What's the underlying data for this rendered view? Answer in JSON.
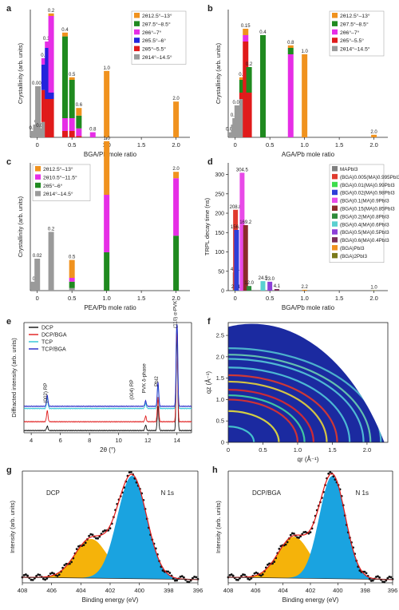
{
  "chart_data": [
    {
      "panel": "a",
      "type": "bar",
      "stacked": true,
      "xlabel": "BGA/Pb mole ratio",
      "ylabel": "Crystallinity (arb. units)",
      "xticks": [
        "0",
        "0.5",
        "1.0",
        "1.5",
        "2.0"
      ],
      "xlim": [
        -0.1,
        2.2
      ],
      "ylim": [
        0,
        1
      ],
      "legend": [
        "2θ12.5°–13°",
        "2θ7.5°–8.5°",
        "2θ6°–7°",
        "2θ5.5°–6°",
        "2θ5°–5.5°",
        "2θ14°–14.5°"
      ],
      "colors": [
        "#f0921e",
        "#1f8a1f",
        "#e62ee6",
        "#2424dc",
        "#e01b1b",
        "#9a9a9a"
      ],
      "legend_position": "top-right",
      "bars": [
        {
          "x": -0.05,
          "label": "0.02",
          "segments": [
            0,
            0,
            0,
            0,
            0,
            0.05
          ]
        },
        {
          "x": -0.02,
          "label": "0",
          "segments": [
            0,
            0,
            0,
            0,
            0,
            0.1
          ]
        },
        {
          "x": 0.01,
          "label": "0.005",
          "segments": [
            0,
            0,
            0,
            0,
            0,
            0.4
          ]
        },
        {
          "x": 0.05,
          "label": "0.01",
          "segments": [
            0,
            0,
            0,
            0,
            0,
            0.07
          ]
        },
        {
          "x": 0.1,
          "label": "0.1",
          "segments": [
            0,
            0,
            0.05,
            0.2,
            0.25,
            0.12
          ]
        },
        {
          "x": 0.15,
          "label": "0.15",
          "segments": [
            0,
            0,
            0.05,
            0.4,
            0.3,
            0
          ]
        },
        {
          "x": 0.2,
          "label": "0.2",
          "segments": [
            0.02,
            0,
            0.6,
            0.05,
            0.3,
            0
          ]
        },
        {
          "x": 0.4,
          "label": "0.4",
          "segments": [
            0.03,
            0.64,
            0.1,
            0,
            0.05,
            0
          ]
        },
        {
          "x": 0.5,
          "label": "0.5",
          "segments": [
            0.02,
            0.3,
            0.1,
            0,
            0.05,
            0
          ]
        },
        {
          "x": 0.6,
          "label": "0.6",
          "segments": [
            0.06,
            0.1,
            0.06,
            0,
            0.01,
            0
          ]
        },
        {
          "x": 0.8,
          "label": "0.8",
          "segments": [
            0,
            0,
            0.04,
            0,
            0,
            0
          ]
        },
        {
          "x": 1.0,
          "label": "1.0",
          "segments": [
            0.52,
            0,
            0,
            0,
            0,
            0
          ]
        },
        {
          "x": 2.0,
          "label": "2.0",
          "segments": [
            0.28,
            0,
            0,
            0,
            0,
            0
          ]
        }
      ]
    },
    {
      "panel": "b",
      "type": "bar",
      "stacked": true,
      "xlabel": "AGA/Pb mole ratio",
      "ylabel": "Crystallinity (arb. units)",
      "xticks": [
        "0",
        "0.5",
        "1.0",
        "1.5",
        "2.0"
      ],
      "xlim": [
        -0.1,
        2.2
      ],
      "ylim": [
        0,
        1
      ],
      "legend": [
        "2θ12.5°–13°",
        "2θ7.5°–8.5°",
        "2θ6°–7°",
        "2θ5°–5.5°",
        "2θ14°–14.5°"
      ],
      "colors": [
        "#f0921e",
        "#1f8a1f",
        "#e62ee6",
        "#e01b1b",
        "#9a9a9a"
      ],
      "legend_position": "top-right",
      "bars": [
        {
          "x": -0.05,
          "label": "0.005",
          "segments": [
            0,
            0,
            0,
            0,
            0.04
          ]
        },
        {
          "x": -0.02,
          "label": "0",
          "segments": [
            0,
            0,
            0,
            0,
            0.1
          ]
        },
        {
          "x": 0.0,
          "label": "0.01",
          "segments": [
            0,
            0,
            0,
            0,
            0.15
          ]
        },
        {
          "x": 0.03,
          "label": "0.02",
          "segments": [
            0,
            0,
            0,
            0,
            0.25
          ]
        },
        {
          "x": 0.1,
          "label": "0.1",
          "segments": [
            0.02,
            0.1,
            0,
            0.05,
            0.3
          ]
        },
        {
          "x": 0.15,
          "label": "0.15",
          "segments": [
            0.05,
            0,
            0.05,
            0.75,
            0
          ]
        },
        {
          "x": 0.2,
          "label": "0.2",
          "segments": [
            0,
            0.2,
            0,
            0.35,
            0
          ]
        },
        {
          "x": 0.4,
          "label": "0.4",
          "segments": [
            0,
            0.8,
            0,
            0,
            0
          ]
        },
        {
          "x": 0.8,
          "label": "0.8",
          "segments": [
            0.02,
            0.05,
            0.65,
            0,
            0
          ]
        },
        {
          "x": 1.0,
          "label": "1.0",
          "segments": [
            0.65,
            0,
            0,
            0,
            0
          ]
        },
        {
          "x": 2.0,
          "label": "2.0",
          "segments": [
            0.02,
            0,
            0,
            0,
            0
          ]
        }
      ]
    },
    {
      "panel": "c",
      "type": "bar",
      "stacked": true,
      "xlabel": "PEA/Pb mole ratio",
      "ylabel": "Crystallinity (arb. units)",
      "xticks": [
        "0",
        "0.5",
        "1.0",
        "1.5",
        "2.0"
      ],
      "xlim": [
        -0.1,
        2.2
      ],
      "ylim": [
        0,
        1
      ],
      "legend": [
        "2θ12.5°–13°",
        "2θ10.5°–11.5°",
        "2θ5°–6°",
        "2θ14°–14.5°"
      ],
      "colors": [
        "#f0921e",
        "#e62ee6",
        "#1f8a1f",
        "#9a9a9a"
      ],
      "legend_position": "top-left",
      "bars": [
        {
          "x": -0.05,
          "label": "0",
          "segments": [
            0,
            0,
            0,
            0.07
          ]
        },
        {
          "x": 0.0,
          "label": "0.02",
          "segments": [
            0,
            0,
            0,
            0.25
          ]
        },
        {
          "x": 0.2,
          "label": "0.2",
          "segments": [
            0,
            0,
            0,
            0.46
          ]
        },
        {
          "x": 0.5,
          "label": "0.5",
          "segments": [
            0.14,
            0.03,
            0.05,
            0.02
          ]
        },
        {
          "x": 1.0,
          "label": "1.0",
          "segments": [
            0.42,
            0.45,
            0.3,
            0
          ]
        },
        {
          "x": 2.0,
          "label": "2.0",
          "segments": [
            0.05,
            0.45,
            0.43,
            0
          ]
        }
      ]
    },
    {
      "panel": "d",
      "type": "bar",
      "xlabel": "BGA/Pb mole ratio",
      "ylabel": "TRPL decay time (ns)",
      "xticks": [
        "0",
        "0.5",
        "1.0",
        "1.5",
        "2.0"
      ],
      "xlim": [
        -0.1,
        2.2
      ],
      "yticks": [
        0,
        50,
        100,
        150,
        200,
        250,
        300
      ],
      "ylim": [
        0,
        330
      ],
      "legend": [
        "MAPbI3",
        "(BGA)0.005(MA)0.995PbI3",
        "(BGA)0.01(MA)0.99PbI3",
        "(BGA)0.02(MA)0.98PbI3",
        "(BGA)0.1(MA)0.9PbI3",
        "(BGA)0.15(MA)0.85PbI3",
        "(BGA)0.2(MA)0.8PbI3",
        "(BGA)0.4(MA)0.6PbI3",
        "(BGA)0.5(MA)0.5PbI3",
        "(BGA)0.6(MA)0.4PbI3",
        "(BGA)PbI3",
        "(BGA)2PbI3"
      ],
      "colors": [
        "#7f7f7f",
        "#e03a2e",
        "#3cdd4c",
        "#2e3ed8",
        "#e84ae8",
        "#8b2a2a",
        "#2e8b3a",
        "#5ad0d0",
        "#8d3fd8",
        "#7a2c58",
        "#f0921e",
        "#7a7a1a"
      ],
      "legend_position": "top-right",
      "bars": [
        {
          "x": 0.0,
          "value": 47.1,
          "label": "47.1"
        },
        {
          "x": 0.005,
          "value": 208.8,
          "label": "208.8"
        },
        {
          "x": 0.01,
          "value": 2.31,
          "label": "2.31"
        },
        {
          "x": 0.02,
          "value": 156.9,
          "label": "156.9"
        },
        {
          "x": 0.1,
          "value": 304.5,
          "label": "304.5"
        },
        {
          "x": 0.15,
          "value": 169.2,
          "label": "169.2"
        },
        {
          "x": 0.2,
          "value": 12.0,
          "label": "12.0"
        },
        {
          "x": 0.4,
          "value": 24.5,
          "label": "24.5"
        },
        {
          "x": 0.5,
          "value": 23.0,
          "label": "23.0"
        },
        {
          "x": 0.6,
          "value": 4.1,
          "label": "4.1"
        },
        {
          "x": 1.0,
          "value": 2.2,
          "label": "2.2"
        },
        {
          "x": 2.0,
          "value": 1.0,
          "label": "1.0"
        }
      ]
    },
    {
      "panel": "e",
      "type": "line",
      "xlabel": "2θ (°)",
      "ylabel": "Diffracted intensity (arb. units)",
      "xticks": [
        4,
        6,
        8,
        10,
        12,
        14
      ],
      "xlim": [
        3.5,
        15
      ],
      "series": [
        {
          "name": "DCP",
          "color": "#111111",
          "offset": 0.02
        },
        {
          "name": "DCP/BGA",
          "color": "#e01b1b",
          "offset": 0.1
        },
        {
          "name": "TCP",
          "color": "#2dc3d6",
          "offset": 0.22
        },
        {
          "name": "TCP/BGA",
          "color": "#2424c8",
          "offset": 0.24
        }
      ],
      "peaks": [
        {
          "x": 5.1,
          "height": 0.1
        },
        {
          "x": 11.85,
          "height": 0.05
        },
        {
          "x": 12.7,
          "height": 0.22
        },
        {
          "x": 14.0,
          "height": 0.9
        }
      ],
      "annotations": [
        "(002) RP",
        "(004) RP",
        "PVK δ-phase",
        "PbI2",
        "(110) α-PVK"
      ]
    },
    {
      "panel": "f",
      "type": "heatmap",
      "xlabel": "qr (Å⁻¹)",
      "ylabel": "qz (Å⁻¹)",
      "xticks": [
        "0",
        "0.5",
        "1.0",
        "1.5",
        "2.0"
      ],
      "xlim": [
        0,
        2.3
      ],
      "yticks": [
        "0",
        "0.5",
        "1.0",
        "1.5",
        "2.0",
        "2.5"
      ],
      "ylim": [
        0,
        2.8
      ],
      "rings": [
        0.37,
        0.73,
        1.0,
        1.1,
        1.23,
        1.42,
        1.57,
        1.75,
        1.95,
        2.05,
        2.2
      ]
    },
    {
      "panel": "g",
      "type": "line",
      "xlabel": "Binding energy (eV)",
      "ylabel": "Intensity (arb. units)",
      "title_left": "DCP",
      "title_right": "N 1s",
      "xticks": [
        408,
        406,
        404,
        402,
        400,
        398,
        396
      ],
      "xlim": [
        408,
        396
      ],
      "components": [
        {
          "center": 403.3,
          "sigma": 1.1,
          "amp": 0.35,
          "color": "#f5b30a"
        },
        {
          "center": 400.5,
          "sigma": 1.0,
          "amp": 0.92,
          "color": "#1aa3e0"
        }
      ]
    },
    {
      "panel": "h",
      "type": "line",
      "xlabel": "Binding energy (eV)",
      "ylabel": "Intensity (arb. units)",
      "title_left": "DCP/BGA",
      "title_right": "N 1s",
      "xticks": [
        408,
        406,
        404,
        402,
        400,
        398,
        396
      ],
      "xlim": [
        408,
        396
      ],
      "components": [
        {
          "center": 403.2,
          "sigma": 1.15,
          "amp": 0.37,
          "color": "#f5b30a"
        },
        {
          "center": 400.4,
          "sigma": 0.95,
          "amp": 0.92,
          "color": "#1aa3e0"
        }
      ]
    }
  ]
}
